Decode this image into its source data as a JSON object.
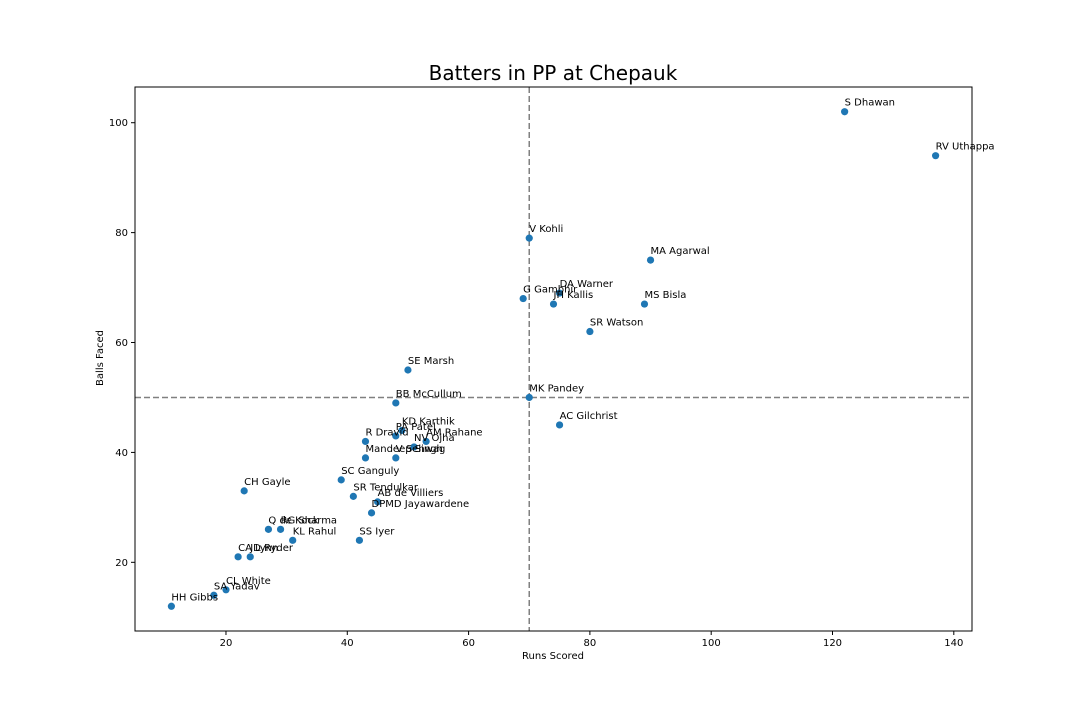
{
  "chart_data": {
    "type": "scatter",
    "title": "Batters in PP at Chepauk",
    "xlabel": "Runs Scored",
    "ylabel": "Balls Faced",
    "xlim": [
      5,
      143
    ],
    "ylim": [
      7.5,
      106.5
    ],
    "xticks": [
      20,
      40,
      60,
      80,
      100,
      120,
      140
    ],
    "yticks": [
      20,
      40,
      60,
      80,
      100
    ],
    "reference_lines": {
      "x": 70,
      "y": 50,
      "style": "dashed",
      "color": "#808080"
    },
    "marker_color": "#1f77b4",
    "grid": false,
    "points": [
      {
        "label": "S Dhawan",
        "x": 122,
        "y": 102
      },
      {
        "label": "RV Uthappa",
        "x": 137,
        "y": 94
      },
      {
        "label": "V Kohli",
        "x": 70,
        "y": 79
      },
      {
        "label": "MA Agarwal",
        "x": 90,
        "y": 75
      },
      {
        "label": "DA Warner",
        "x": 75,
        "y": 69
      },
      {
        "label": "G Gambhir",
        "x": 69,
        "y": 68
      },
      {
        "label": "JH Kallis",
        "x": 74,
        "y": 67
      },
      {
        "label": "MS Bisla",
        "x": 89,
        "y": 67
      },
      {
        "label": "SR Watson",
        "x": 80,
        "y": 62
      },
      {
        "label": "SE Marsh",
        "x": 50,
        "y": 55
      },
      {
        "label": "MK Pandey",
        "x": 70,
        "y": 50
      },
      {
        "label": "BB McCullum",
        "x": 48,
        "y": 49
      },
      {
        "label": "AC Gilchrist",
        "x": 75,
        "y": 45
      },
      {
        "label": "KD Karthik",
        "x": 49,
        "y": 44
      },
      {
        "label": "PA Patel",
        "x": 48,
        "y": 43
      },
      {
        "label": "R Dravid",
        "x": 43,
        "y": 42
      },
      {
        "label": "AM Rahane",
        "x": 53,
        "y": 42
      },
      {
        "label": "NV Ojha",
        "x": 51,
        "y": 41
      },
      {
        "label": "Mandeep Singh",
        "x": 43,
        "y": 39
      },
      {
        "label": "V Sehwag",
        "x": 48,
        "y": 39
      },
      {
        "label": "SC Ganguly",
        "x": 39,
        "y": 35
      },
      {
        "label": "CH Gayle",
        "x": 23,
        "y": 33
      },
      {
        "label": "SR Tendulkar",
        "x": 41,
        "y": 32
      },
      {
        "label": "AB de Villiers",
        "x": 45,
        "y": 31
      },
      {
        "label": "DPMD Jayawardene",
        "x": 44,
        "y": 29
      },
      {
        "label": "Q de Kock",
        "x": 27,
        "y": 26
      },
      {
        "label": "RG Sharma",
        "x": 29,
        "y": 26
      },
      {
        "label": "KL Rahul",
        "x": 31,
        "y": 24
      },
      {
        "label": "SS Iyer",
        "x": 42,
        "y": 24
      },
      {
        "label": "CA Lynn",
        "x": 22,
        "y": 21
      },
      {
        "label": "JD Ryder",
        "x": 24,
        "y": 21
      },
      {
        "label": "CL White",
        "x": 20,
        "y": 15
      },
      {
        "label": "SA Yadav",
        "x": 18,
        "y": 14
      },
      {
        "label": "HH Gibbs",
        "x": 11,
        "y": 12
      }
    ]
  }
}
